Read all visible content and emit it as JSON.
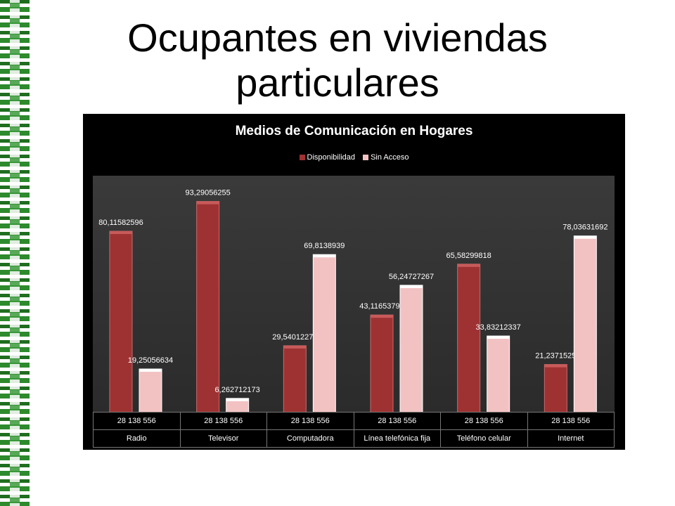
{
  "slide": {
    "title_line1": "Ocupantes en viviendas",
    "title_line2": "particulares"
  },
  "colors": {
    "series1": "#9e3232",
    "series2": "#f2c2c2",
    "border": "#2d8a2d"
  },
  "chart_data": {
    "type": "bar",
    "title": "Medios de Comunicación en Hogares",
    "categories": [
      "Radio",
      "Televisor",
      "Computadora",
      "Línea telefónica fija",
      "Teléfono celular",
      "Internet"
    ],
    "table_row": [
      "28 138 556",
      "28 138 556",
      "28 138 556",
      "28 138 556",
      "28 138 556",
      "28 138 556"
    ],
    "series": [
      {
        "name": "Disponibilidad",
        "values": [
          80.11582596,
          93.29056255,
          29.54012274,
          43.11653794,
          65.58299818,
          21.2371525
        ],
        "labels": [
          "80,11582596",
          "93,29056255",
          "29,54012274",
          "43,11653794",
          "65,58299818",
          "21,2371525"
        ]
      },
      {
        "name": "Sin Acceso",
        "values": [
          19.25056634,
          6.262712173,
          69.8138939,
          56.24727267,
          33.83212337,
          78.03631692
        ],
        "labels": [
          "19,25056634",
          "6,262712173",
          "69,8138939",
          "56,24727267",
          "33,83212337",
          "78,03631692"
        ]
      }
    ],
    "ylim": [
      0,
      100
    ],
    "legend": "top"
  }
}
